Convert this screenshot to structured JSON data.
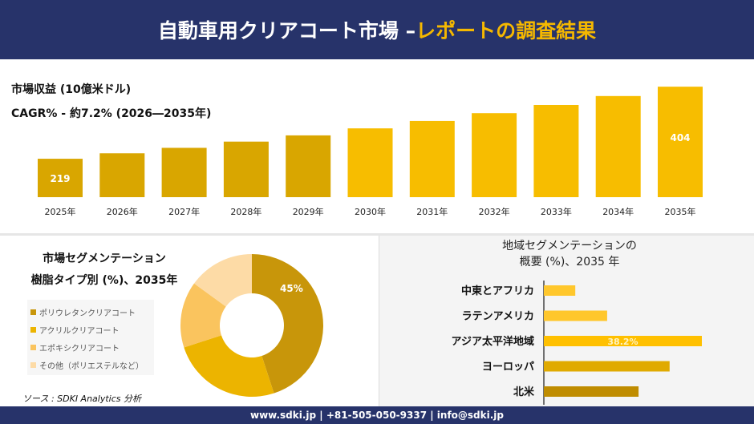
{
  "header": {
    "title": "自動車用クリアコート市場 –",
    "title_accent": "レポートの調査結果"
  },
  "revenue": {
    "label": "市場収益 (10億米ドル)",
    "cagr": "CAGR% - 約7.2% (2026―2035年)"
  },
  "chart_data": [
    {
      "type": "bar",
      "categories": [
        "2025年",
        "2026年",
        "2027年",
        "2028年",
        "2029年",
        "2030年",
        "2031年",
        "2032年",
        "2033年",
        "2034年",
        "2035年"
      ],
      "values": [
        219,
        233,
        247,
        263,
        279,
        297,
        316,
        336,
        357,
        380,
        404
      ],
      "data_labels": {
        "2025年": "219",
        "2035年": "404"
      },
      "colors": {
        "start": "#d7a300",
        "end": "#ffc000"
      }
    },
    {
      "type": "pie",
      "title": "市場セグメンテーション 樹脂タイプ別 (%)、2035年",
      "title_lines": [
        "市場セグメンテーション",
        "樹脂タイプ別 (%)、2035年"
      ],
      "categories": [
        "ポリウレタンクリアコート",
        "アクリルクリアコート",
        "エポキシクリアコート",
        "その他（ポリエステルなど）"
      ],
      "values": [
        45,
        25,
        15,
        15
      ],
      "data_labels": [
        "45%",
        "",
        "",
        ""
      ],
      "colors": [
        "#c8960a",
        "#ecb400",
        "#fac45e",
        "#fddba6"
      ],
      "legend": "left"
    },
    {
      "type": "bar",
      "orientation": "horizontal",
      "title_lines": [
        "地域セグメンテーションの",
        "概要 (%)、2035 年"
      ],
      "categories": [
        "中東とアフリカ",
        "ラテンアメリカ",
        "アジア太平洋地域",
        "ヨーロッパ",
        "北米"
      ],
      "values": [
        7.6,
        15.3,
        38.2,
        30.4,
        22.9
      ],
      "data_labels": [
        "",
        "",
        "38.2%",
        "",
        ""
      ],
      "colors": [
        "#ffc72c",
        "#ffc72c",
        "#ffc000",
        "#e0aa00",
        "#bf8c00"
      ]
    }
  ],
  "source": "ソース : SDKI Analytics 分析",
  "footer": "www.sdki.jp | +81-505-050-9337 | info@sdki.jp"
}
